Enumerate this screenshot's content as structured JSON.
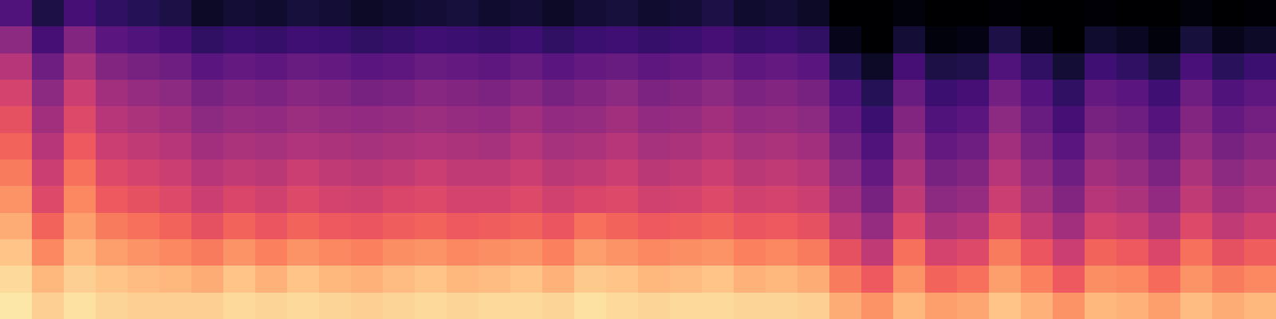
{
  "chart_data": {
    "type": "heatmap",
    "tick_labels": false,
    "clim": [
      -80,
      0
    ],
    "cells": [
      [
        -60,
        -70,
        -62,
        -66,
        -68,
        -70,
        -74,
        -72,
        -73,
        -71,
        -72,
        -74,
        -73,
        -72,
        -71,
        -73,
        -72,
        -74,
        -72,
        -71,
        -73,
        -72,
        -70,
        -73,
        -72,
        -74,
        -80,
        -82,
        -78,
        -80,
        -81,
        -79,
        -80,
        -82,
        -79,
        -80,
        -81,
        -78,
        -80,
        -79
      ],
      [
        -48,
        -62,
        -50,
        -58,
        -60,
        -62,
        -66,
        -64,
        -65,
        -63,
        -64,
        -66,
        -65,
        -63,
        -64,
        -65,
        -63,
        -66,
        -64,
        -63,
        -65,
        -64,
        -62,
        -65,
        -64,
        -66,
        -76,
        -80,
        -72,
        -78,
        -77,
        -70,
        -76,
        -80,
        -73,
        -75,
        -78,
        -71,
        -76,
        -74
      ],
      [
        -40,
        -54,
        -42,
        -50,
        -52,
        -54,
        -58,
        -56,
        -57,
        -55,
        -56,
        -58,
        -57,
        -55,
        -56,
        -57,
        -55,
        -58,
        -56,
        -55,
        -57,
        -56,
        -54,
        -57,
        -56,
        -58,
        -68,
        -74,
        -62,
        -70,
        -69,
        -60,
        -66,
        -72,
        -63,
        -66,
        -70,
        -61,
        -67,
        -64
      ],
      [
        -34,
        -48,
        -36,
        -44,
        -46,
        -48,
        -52,
        -50,
        -51,
        -49,
        -50,
        -52,
        -51,
        -49,
        -50,
        -51,
        -49,
        -52,
        -50,
        -48,
        -51,
        -50,
        -48,
        -51,
        -50,
        -52,
        -60,
        -68,
        -55,
        -64,
        -62,
        -53,
        -59,
        -66,
        -56,
        -58,
        -63,
        -54,
        -60,
        -57
      ],
      [
        -30,
        -44,
        -32,
        -40,
        -42,
        -44,
        -48,
        -46,
        -47,
        -45,
        -46,
        -47,
        -46,
        -45,
        -46,
        -47,
        -44,
        -47,
        -46,
        -44,
        -47,
        -46,
        -44,
        -47,
        -46,
        -48,
        -56,
        -64,
        -50,
        -60,
        -58,
        -48,
        -55,
        -62,
        -52,
        -54,
        -59,
        -50,
        -56,
        -53
      ],
      [
        -26,
        -40,
        -28,
        -36,
        -38,
        -40,
        -44,
        -42,
        -43,
        -41,
        -42,
        -43,
        -42,
        -41,
        -42,
        -43,
        -40,
        -43,
        -42,
        -40,
        -43,
        -42,
        -40,
        -43,
        -42,
        -44,
        -52,
        -60,
        -46,
        -56,
        -54,
        -44,
        -51,
        -58,
        -48,
        -50,
        -55,
        -46,
        -52,
        -49
      ],
      [
        -22,
        -36,
        -24,
        -32,
        -34,
        -36,
        -40,
        -38,
        -39,
        -36,
        -38,
        -39,
        -38,
        -36,
        -38,
        -38,
        -36,
        -39,
        -38,
        -36,
        -39,
        -38,
        -36,
        -39,
        -38,
        -40,
        -48,
        -56,
        -42,
        -52,
        -50,
        -40,
        -47,
        -54,
        -44,
        -46,
        -51,
        -42,
        -48,
        -45
      ],
      [
        -18,
        -32,
        -20,
        -28,
        -30,
        -32,
        -36,
        -33,
        -35,
        -32,
        -34,
        -35,
        -33,
        -32,
        -34,
        -34,
        -32,
        -35,
        -33,
        -32,
        -35,
        -34,
        -32,
        -35,
        -34,
        -36,
        -44,
        -52,
        -38,
        -48,
        -46,
        -36,
        -43,
        -50,
        -40,
        -42,
        -47,
        -38,
        -44,
        -41
      ],
      [
        -14,
        -26,
        -16,
        -22,
        -24,
        -26,
        -30,
        -26,
        -29,
        -26,
        -28,
        -29,
        -27,
        -26,
        -28,
        -27,
        -26,
        -29,
        -24,
        -26,
        -28,
        -27,
        -26,
        -29,
        -28,
        -30,
        -38,
        -46,
        -32,
        -42,
        -40,
        -30,
        -37,
        -44,
        -34,
        -36,
        -41,
        -32,
        -38,
        -35
      ],
      [
        -10,
        -20,
        -12,
        -16,
        -18,
        -20,
        -22,
        -18,
        -21,
        -18,
        -20,
        -21,
        -19,
        -18,
        -20,
        -19,
        -18,
        -21,
        -16,
        -18,
        -20,
        -19,
        -18,
        -21,
        -20,
        -22,
        -30,
        -38,
        -24,
        -34,
        -32,
        -22,
        -29,
        -36,
        -26,
        -28,
        -33,
        -24,
        -30,
        -27
      ],
      [
        -6,
        -12,
        -8,
        -10,
        -11,
        -12,
        -14,
        -10,
        -13,
        -10,
        -12,
        -13,
        -11,
        -10,
        -12,
        -11,
        -10,
        -13,
        -9,
        -10,
        -12,
        -11,
        -10,
        -13,
        -12,
        -14,
        -22,
        -28,
        -18,
        -26,
        -24,
        -16,
        -21,
        -28,
        -19,
        -20,
        -25,
        -18,
        -22,
        -20
      ],
      [
        -4,
        -8,
        -5,
        -7,
        -8,
        -8,
        -8,
        -6,
        -7,
        -6,
        -7,
        -8,
        -7,
        -6,
        -7,
        -6,
        -6,
        -7,
        -5,
        -6,
        -7,
        -6,
        -6,
        -7,
        -7,
        -8,
        -14,
        -18,
        -12,
        -16,
        -15,
        -10,
        -13,
        -18,
        -12,
        -13,
        -16,
        -11,
        -14,
        -12
      ]
    ]
  }
}
